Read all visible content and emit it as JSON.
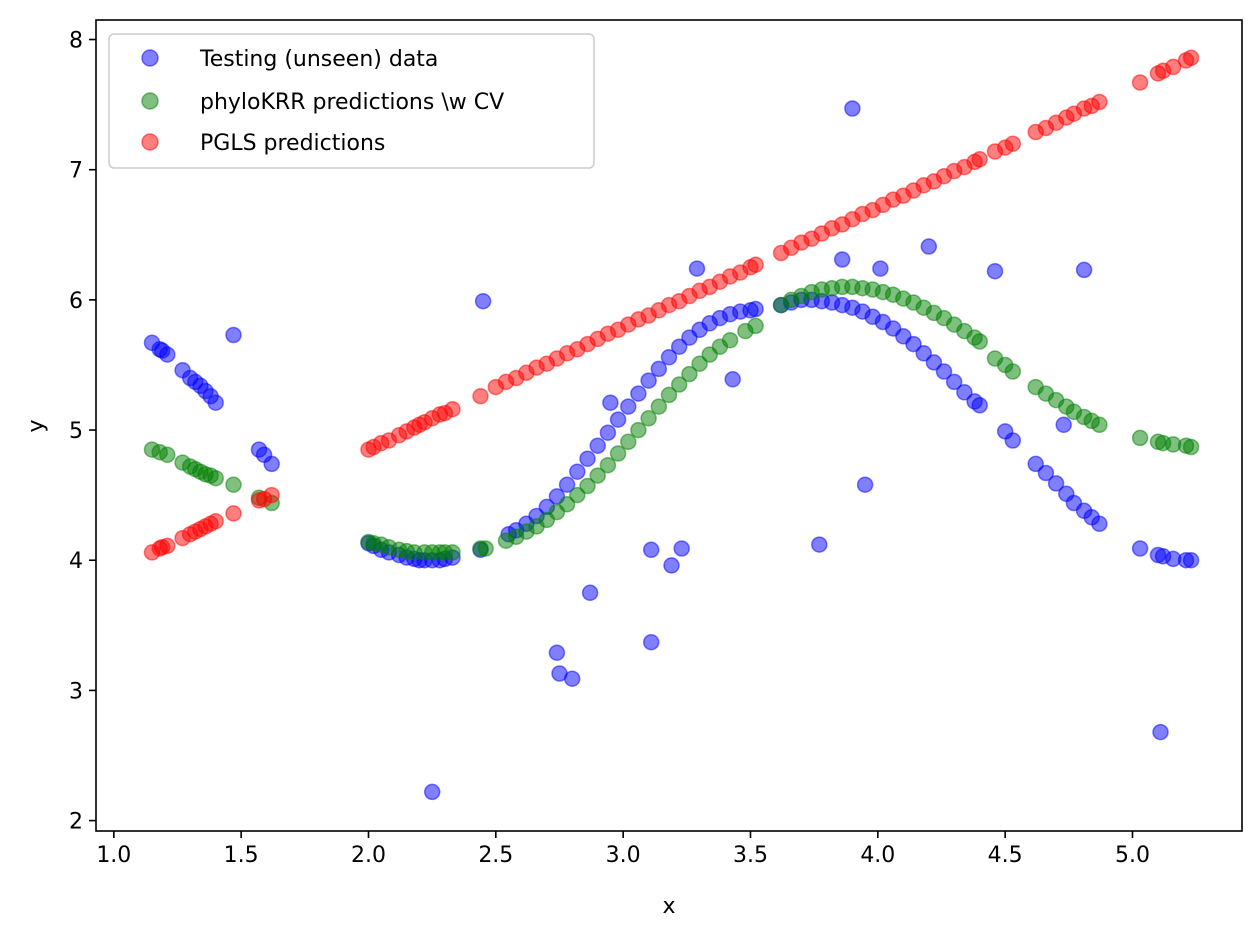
{
  "chart_data": {
    "type": "scatter",
    "xlabel": "x",
    "ylabel": "y",
    "xlim": [
      0.93,
      5.43
    ],
    "ylim": [
      1.92,
      8.15
    ],
    "xticks": [
      1.0,
      1.5,
      2.0,
      2.5,
      3.0,
      3.5,
      4.0,
      4.5,
      5.0
    ],
    "yticks": [
      2,
      3,
      4,
      5,
      6,
      7,
      8
    ],
    "xtick_labels": [
      "1.0",
      "1.5",
      "2.0",
      "2.5",
      "3.0",
      "3.5",
      "4.0",
      "4.5",
      "5.0"
    ],
    "ytick_labels": [
      "2",
      "3",
      "4",
      "5",
      "6",
      "7",
      "8"
    ],
    "grid": false,
    "legend_position": "top-left",
    "marker_alpha": 0.5,
    "series": [
      {
        "name": "Testing (unseen) data",
        "color": "#0000ff",
        "x": [
          1.15,
          1.18,
          1.19,
          1.21,
          1.27,
          1.3,
          1.32,
          1.34,
          1.36,
          1.38,
          1.4,
          1.47,
          1.57,
          1.59,
          1.62,
          2.0,
          2.02,
          2.05,
          2.08,
          2.12,
          2.15,
          2.18,
          2.2,
          2.22,
          2.25,
          2.28,
          2.3,
          2.33,
          2.25,
          2.44,
          2.45,
          2.55,
          2.58,
          2.62,
          2.66,
          2.7,
          2.74,
          2.78,
          2.82,
          2.86,
          2.9,
          2.94,
          2.98,
          3.02,
          3.06,
          3.1,
          3.14,
          3.18,
          3.22,
          3.26,
          3.3,
          3.34,
          3.38,
          3.42,
          3.46,
          3.5,
          3.52,
          2.74,
          2.75,
          2.8,
          2.87,
          2.95,
          3.11,
          3.11,
          3.19,
          3.23,
          3.29,
          3.43,
          3.62,
          3.66,
          3.7,
          3.74,
          3.78,
          3.82,
          3.86,
          3.9,
          3.94,
          3.98,
          4.02,
          4.06,
          4.1,
          4.14,
          4.18,
          4.22,
          4.26,
          4.3,
          4.34,
          4.38,
          4.4,
          3.77,
          3.86,
          3.9,
          3.95,
          4.01,
          4.2,
          4.46,
          4.5,
          4.53,
          4.62,
          4.66,
          4.7,
          4.74,
          4.77,
          4.81,
          4.84,
          4.87,
          4.73,
          4.81,
          5.03,
          5.1,
          5.12,
          5.16,
          5.21,
          5.23,
          5.11
        ],
        "y": [
          5.67,
          5.62,
          5.61,
          5.58,
          5.46,
          5.4,
          5.37,
          5.34,
          5.3,
          5.26,
          5.21,
          5.73,
          4.85,
          4.81,
          4.74,
          4.13,
          4.11,
          4.08,
          4.06,
          4.04,
          4.02,
          4.01,
          4.0,
          4.0,
          4.0,
          4.0,
          4.01,
          4.02,
          2.22,
          4.08,
          5.99,
          4.2,
          4.23,
          4.28,
          4.34,
          4.41,
          4.49,
          4.58,
          4.68,
          4.78,
          4.88,
          4.98,
          5.08,
          5.18,
          5.28,
          5.38,
          5.47,
          5.56,
          5.64,
          5.71,
          5.77,
          5.82,
          5.86,
          5.89,
          5.91,
          5.92,
          5.93,
          3.29,
          3.13,
          3.09,
          3.75,
          5.21,
          4.08,
          3.37,
          3.96,
          4.09,
          6.24,
          5.39,
          5.96,
          5.98,
          6.0,
          6.0,
          5.99,
          5.98,
          5.96,
          5.94,
          5.91,
          5.87,
          5.83,
          5.78,
          5.72,
          5.66,
          5.59,
          5.52,
          5.45,
          5.37,
          5.29,
          5.22,
          5.19,
          4.12,
          6.31,
          7.47,
          4.58,
          6.24,
          6.41,
          6.22,
          4.99,
          4.92,
          4.74,
          4.67,
          4.59,
          4.51,
          4.44,
          4.38,
          4.33,
          4.28,
          5.04,
          6.23,
          4.09,
          4.04,
          4.03,
          4.01,
          4.0,
          4.0,
          2.68
        ]
      },
      {
        "name": "phyloKRR predictions \\w CV",
        "color": "#008000",
        "x": [
          1.15,
          1.18,
          1.21,
          1.27,
          1.3,
          1.32,
          1.34,
          1.36,
          1.38,
          1.4,
          1.47,
          1.57,
          1.62,
          2.0,
          2.02,
          2.05,
          2.08,
          2.12,
          2.15,
          2.18,
          2.22,
          2.25,
          2.28,
          2.3,
          2.33,
          2.44,
          2.46,
          2.54,
          2.58,
          2.62,
          2.66,
          2.7,
          2.74,
          2.78,
          2.82,
          2.86,
          2.9,
          2.94,
          2.98,
          3.02,
          3.06,
          3.1,
          3.14,
          3.18,
          3.22,
          3.26,
          3.3,
          3.34,
          3.38,
          3.42,
          3.48,
          3.52,
          3.62,
          3.66,
          3.7,
          3.74,
          3.78,
          3.82,
          3.86,
          3.9,
          3.94,
          3.98,
          4.02,
          4.06,
          4.1,
          4.14,
          4.18,
          4.22,
          4.26,
          4.3,
          4.34,
          4.38,
          4.4,
          4.46,
          4.5,
          4.53,
          4.62,
          4.66,
          4.7,
          4.74,
          4.77,
          4.81,
          4.84,
          4.87,
          5.03,
          5.1,
          5.12,
          5.16,
          5.21,
          5.23
        ],
        "y": [
          4.85,
          4.83,
          4.81,
          4.75,
          4.72,
          4.7,
          4.68,
          4.66,
          4.65,
          4.63,
          4.58,
          4.48,
          4.44,
          4.14,
          4.13,
          4.12,
          4.1,
          4.08,
          4.07,
          4.06,
          4.06,
          4.06,
          4.06,
          4.06,
          4.06,
          4.09,
          4.09,
          4.15,
          4.18,
          4.22,
          4.26,
          4.31,
          4.37,
          4.43,
          4.5,
          4.57,
          4.65,
          4.73,
          4.82,
          4.91,
          5.0,
          5.09,
          5.18,
          5.27,
          5.35,
          5.43,
          5.51,
          5.58,
          5.64,
          5.69,
          5.76,
          5.8,
          5.96,
          6.0,
          6.03,
          6.06,
          6.08,
          6.09,
          6.1,
          6.1,
          6.09,
          6.08,
          6.06,
          6.04,
          6.01,
          5.98,
          5.94,
          5.9,
          5.86,
          5.81,
          5.76,
          5.71,
          5.68,
          5.55,
          5.5,
          5.45,
          5.33,
          5.28,
          5.23,
          5.18,
          5.14,
          5.1,
          5.07,
          5.04,
          4.94,
          4.91,
          4.9,
          4.89,
          4.88,
          4.87
        ]
      },
      {
        "name": "PGLS predictions",
        "color": "#ff0000",
        "x": [
          1.15,
          1.18,
          1.19,
          1.21,
          1.27,
          1.3,
          1.32,
          1.34,
          1.36,
          1.38,
          1.4,
          1.47,
          1.57,
          1.59,
          1.62,
          2.0,
          2.02,
          2.05,
          2.08,
          2.12,
          2.15,
          2.18,
          2.2,
          2.22,
          2.25,
          2.28,
          2.3,
          2.33,
          2.44,
          2.5,
          2.54,
          2.58,
          2.62,
          2.66,
          2.7,
          2.74,
          2.78,
          2.82,
          2.86,
          2.9,
          2.94,
          2.98,
          3.02,
          3.06,
          3.1,
          3.14,
          3.18,
          3.22,
          3.26,
          3.3,
          3.34,
          3.38,
          3.42,
          3.46,
          3.5,
          3.52,
          3.62,
          3.66,
          3.7,
          3.74,
          3.78,
          3.82,
          3.86,
          3.9,
          3.94,
          3.98,
          4.02,
          4.06,
          4.1,
          4.14,
          4.18,
          4.22,
          4.26,
          4.3,
          4.34,
          4.38,
          4.4,
          4.46,
          4.5,
          4.53,
          4.62,
          4.66,
          4.7,
          4.74,
          4.77,
          4.81,
          4.84,
          4.87,
          5.03,
          5.1,
          5.12,
          5.16,
          5.21,
          5.23
        ],
        "y": [
          4.06,
          4.09,
          4.1,
          4.11,
          4.17,
          4.2,
          4.22,
          4.24,
          4.26,
          4.28,
          4.3,
          4.36,
          4.46,
          4.47,
          4.5,
          4.85,
          4.87,
          4.9,
          4.92,
          4.96,
          4.99,
          5.02,
          5.04,
          5.06,
          5.09,
          5.12,
          5.13,
          5.16,
          5.26,
          5.33,
          5.37,
          5.4,
          5.44,
          5.48,
          5.51,
          5.55,
          5.59,
          5.62,
          5.66,
          5.7,
          5.74,
          5.77,
          5.81,
          5.85,
          5.88,
          5.92,
          5.96,
          5.99,
          6.03,
          6.07,
          6.1,
          6.14,
          6.18,
          6.21,
          6.25,
          6.27,
          6.36,
          6.4,
          6.44,
          6.47,
          6.51,
          6.55,
          6.58,
          6.62,
          6.66,
          6.69,
          6.73,
          6.77,
          6.8,
          6.84,
          6.88,
          6.91,
          6.95,
          6.99,
          7.02,
          7.06,
          7.08,
          7.14,
          7.17,
          7.2,
          7.29,
          7.32,
          7.36,
          7.4,
          7.43,
          7.47,
          7.49,
          7.52,
          7.67,
          7.74,
          7.76,
          7.79,
          7.84,
          7.86
        ]
      }
    ]
  }
}
